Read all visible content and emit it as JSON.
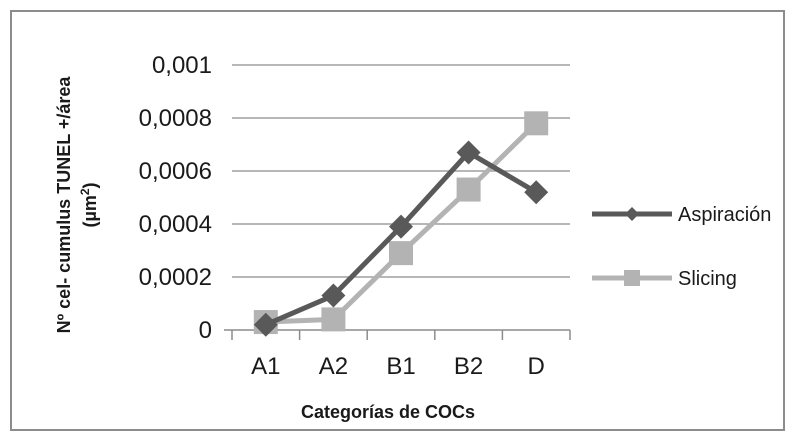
{
  "chart_data": {
    "type": "line",
    "categories": [
      "A1",
      "A2",
      "B1",
      "B2",
      "D"
    ],
    "series": [
      {
        "name": "Aspiración",
        "values": [
          2e-05,
          0.00013,
          0.00039,
          0.00067,
          0.00052
        ],
        "color": "#595959",
        "marker": "diamond"
      },
      {
        "name": "Slicing",
        "values": [
          3e-05,
          4e-05,
          0.00029,
          0.00053,
          0.00078
        ],
        "color": "#b3b3b3",
        "marker": "square"
      }
    ],
    "yticks": [
      "0",
      "0,0002",
      "0,0004",
      "0,0006",
      "0,0008",
      "0,001"
    ],
    "ylim": [
      0,
      0.001
    ],
    "xlabel": "Categorías de COCs",
    "ylabel_main": "Nº cel- cumulus TUNEL +/área",
    "ylabel_unit_open": "(µm",
    "ylabel_unit_sup": "2",
    "ylabel_unit_close": ")",
    "grid": true,
    "legend": "right"
  }
}
